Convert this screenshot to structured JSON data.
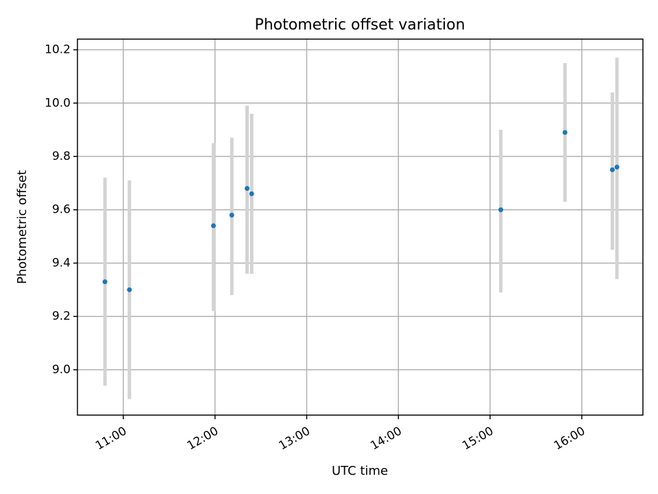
{
  "chart_data": {
    "type": "scatter",
    "title": "Photometric offset variation",
    "xlabel": "UTC time",
    "ylabel": "Photometric offset",
    "x_ticks": [
      "11:00",
      "12:00",
      "13:00",
      "14:00",
      "15:00",
      "16:00"
    ],
    "y_ticks": [
      "9.0",
      "9.2",
      "9.4",
      "9.6",
      "9.8",
      "10.0",
      "10.2"
    ],
    "xlim": [
      "10:30",
      "16:40"
    ],
    "ylim": [
      8.83,
      10.24
    ],
    "grid": true,
    "colors": {
      "point": "#1f77b4",
      "errorbar": "#d3d3d3"
    },
    "points": [
      {
        "x": "10:48",
        "y": 9.33,
        "y_low": 8.94,
        "y_high": 9.72
      },
      {
        "x": "11:04",
        "y": 9.3,
        "y_low": 8.89,
        "y_high": 9.71
      },
      {
        "x": "11:59",
        "y": 9.54,
        "y_low": 9.22,
        "y_high": 9.85
      },
      {
        "x": "12:11",
        "y": 9.58,
        "y_low": 9.28,
        "y_high": 9.87
      },
      {
        "x": "12:21",
        "y": 9.68,
        "y_low": 9.36,
        "y_high": 9.99
      },
      {
        "x": "12:24",
        "y": 9.66,
        "y_low": 9.36,
        "y_high": 9.96
      },
      {
        "x": "15:07",
        "y": 9.6,
        "y_low": 9.29,
        "y_high": 9.9
      },
      {
        "x": "15:49",
        "y": 9.89,
        "y_low": 9.63,
        "y_high": 10.15
      },
      {
        "x": "16:20",
        "y": 9.75,
        "y_low": 9.45,
        "y_high": 10.04
      },
      {
        "x": "16:23",
        "y": 9.76,
        "y_low": 9.34,
        "y_high": 10.17
      }
    ]
  }
}
